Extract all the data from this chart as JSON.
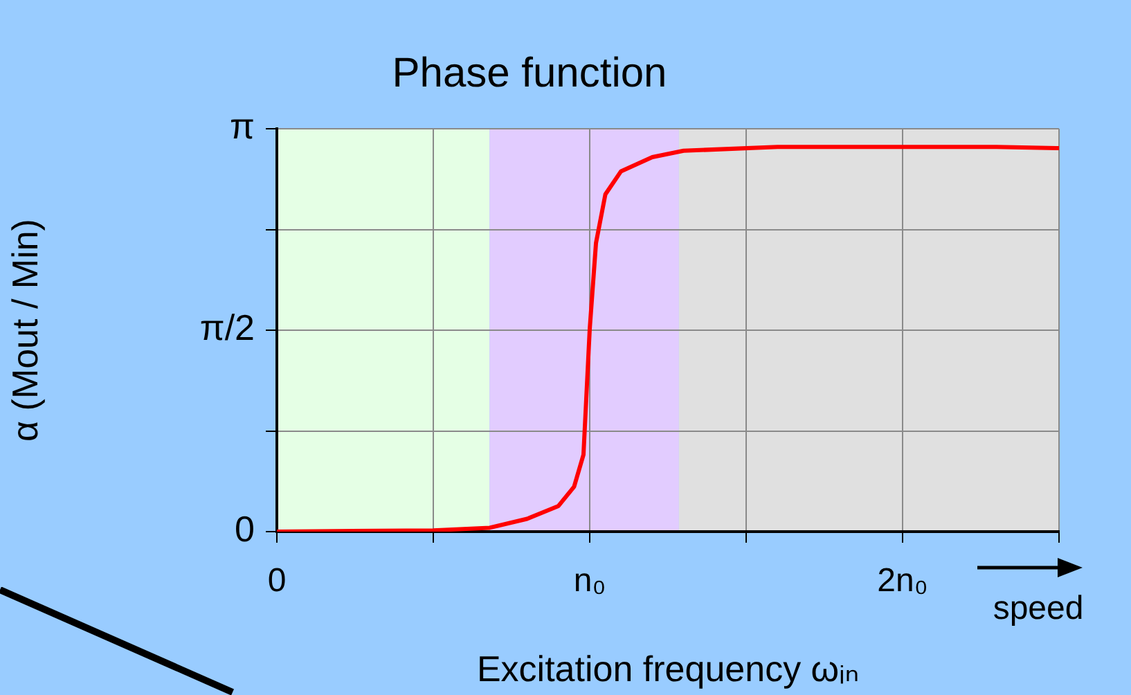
{
  "chart_data": {
    "type": "line",
    "title": "Phase function",
    "xlabel": "Excitation frequency ωᵢₙ",
    "ylabel": "α (Mout / Min)",
    "annotations": [
      "speed"
    ],
    "x": [
      0,
      0.5,
      0.68,
      0.8,
      0.9,
      0.95,
      0.98,
      1.0,
      1.02,
      1.05,
      1.1,
      1.2,
      1.3,
      1.6,
      2.0,
      2.3,
      2.5
    ],
    "series": [
      {
        "color": "#ff0000",
        "values": [
          0,
          0.01,
          0.03,
          0.1,
          0.2,
          0.35,
          0.6,
          1.58,
          2.25,
          2.63,
          2.81,
          2.92,
          2.97,
          3.0,
          3.0,
          3.0,
          2.99
        ]
      }
    ],
    "xlim": [
      0,
      2.5
    ],
    "xticks": [
      0,
      {
        "value": 0.5,
        "label": null
      },
      {
        "value": 1,
        "label": "n₀"
      },
      {
        "value": 1.5,
        "label": null
      },
      {
        "value": 2,
        "label": "2n₀"
      },
      {
        "value": 2.5,
        "label": null
      }
    ],
    "ylim": [
      0,
      3.1416
    ],
    "yticks": [
      0,
      {
        "value": 0.7854,
        "label": null
      },
      {
        "value": 1.5708,
        "label": "π/2"
      },
      {
        "value": 2.3562,
        "label": null
      },
      {
        "value": 3.1416,
        "label": "π"
      }
    ],
    "bands": [
      {
        "axis": "x",
        "from": 0,
        "to": 0.68,
        "color": "#e5ffe5"
      },
      {
        "axis": "x",
        "from": 0.68,
        "to": 1.285,
        "color": "#e2ccff"
      },
      {
        "axis": "x",
        "from": 1.285,
        "to": 2.5,
        "color": "#e0e0e0"
      }
    ],
    "grid": true,
    "legend": false,
    "marker": "none",
    "line_style": "solid"
  }
}
